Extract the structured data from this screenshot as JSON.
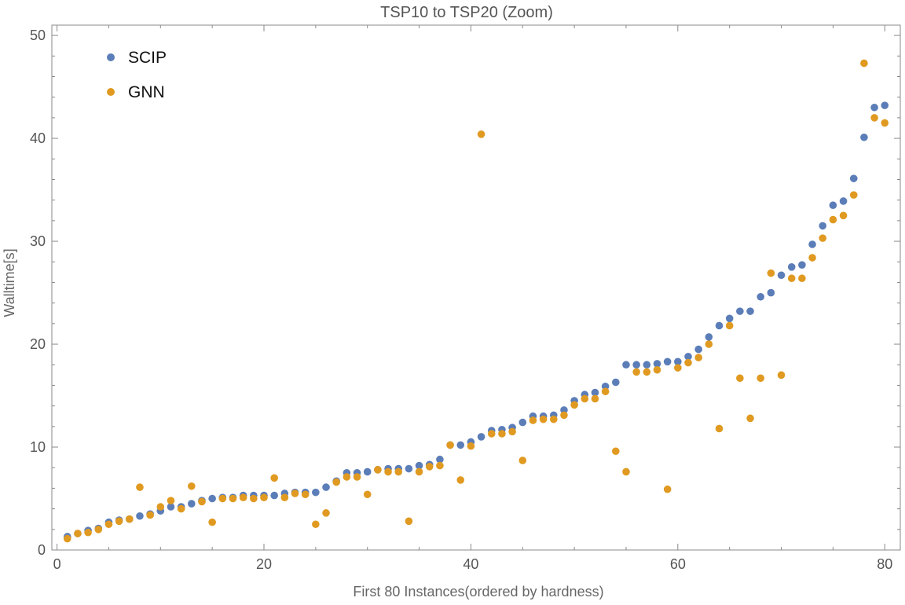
{
  "chart_data": {
    "type": "scatter",
    "title": "TSP10 to TSP20 (Zoom)",
    "xlabel": "First 80 Instances(ordered by hardness)",
    "ylabel": "Walltime[s]",
    "xlim": [
      -0.5,
      81.5
    ],
    "ylim": [
      0,
      51
    ],
    "xticks": [
      0,
      20,
      40,
      60,
      80
    ],
    "yticks": [
      0,
      10,
      20,
      30,
      40,
      50
    ],
    "grid": false,
    "legend_position": "top-left",
    "series": [
      {
        "name": "SCIP",
        "color": "#5b7db8",
        "x": [
          1,
          2,
          3,
          4,
          5,
          6,
          7,
          8,
          9,
          10,
          11,
          12,
          13,
          14,
          15,
          16,
          17,
          18,
          19,
          20,
          21,
          22,
          23,
          24,
          25,
          26,
          27,
          28,
          29,
          30,
          31,
          32,
          33,
          34,
          35,
          36,
          37,
          38,
          39,
          40,
          41,
          42,
          43,
          44,
          45,
          46,
          47,
          48,
          49,
          50,
          51,
          52,
          53,
          54,
          55,
          56,
          57,
          58,
          59,
          60,
          61,
          62,
          63,
          64,
          65,
          66,
          67,
          68,
          69,
          70,
          71,
          72,
          73,
          74,
          75,
          76,
          77,
          78,
          79,
          80
        ],
        "y": [
          1.3,
          1.6,
          1.9,
          2.1,
          2.7,
          2.9,
          3.0,
          3.3,
          3.5,
          3.8,
          4.2,
          4.2,
          4.5,
          4.8,
          5.0,
          5.1,
          5.1,
          5.3,
          5.3,
          5.3,
          5.3,
          5.5,
          5.6,
          5.6,
          5.6,
          6.1,
          6.7,
          7.5,
          7.5,
          7.6,
          7.8,
          7.9,
          7.9,
          7.9,
          8.2,
          8.3,
          8.8,
          10.2,
          10.2,
          10.5,
          11.0,
          11.6,
          11.7,
          11.9,
          12.4,
          13.0,
          13.0,
          13.1,
          13.6,
          14.5,
          15.1,
          15.3,
          15.9,
          16.3,
          18.0,
          18.0,
          18.0,
          18.1,
          18.3,
          18.3,
          18.8,
          19.5,
          20.7,
          21.8,
          22.5,
          23.2,
          23.2,
          24.6,
          25.0,
          26.7,
          27.5,
          27.7,
          29.7,
          31.5,
          33.5,
          33.9,
          36.1,
          40.1,
          43.0,
          43.2
        ]
      },
      {
        "name": "GNN",
        "color": "#e09a21",
        "x": [
          1,
          2,
          3,
          4,
          5,
          6,
          7,
          8,
          9,
          10,
          11,
          12,
          13,
          14,
          15,
          16,
          17,
          18,
          19,
          20,
          21,
          22,
          23,
          24,
          25,
          26,
          27,
          28,
          29,
          30,
          31,
          32,
          33,
          34,
          35,
          36,
          37,
          38,
          39,
          40,
          41,
          42,
          43,
          44,
          45,
          46,
          47,
          48,
          49,
          50,
          51,
          52,
          53,
          54,
          55,
          56,
          57,
          58,
          59,
          60,
          61,
          62,
          63,
          64,
          65,
          66,
          67,
          68,
          69,
          70,
          71,
          72,
          73,
          74,
          75,
          76,
          77,
          78,
          79,
          80
        ],
        "y": [
          1.1,
          1.6,
          1.7,
          2.0,
          2.5,
          2.8,
          3.0,
          6.1,
          3.4,
          4.2,
          4.8,
          4.0,
          6.2,
          4.7,
          2.7,
          5.0,
          5.0,
          5.1,
          5.0,
          5.1,
          7.0,
          5.1,
          5.5,
          5.4,
          2.5,
          3.6,
          6.6,
          7.1,
          7.1,
          5.4,
          7.8,
          7.6,
          7.6,
          2.8,
          7.6,
          8.1,
          8.2,
          10.2,
          6.8,
          10.1,
          40.4,
          11.3,
          11.3,
          11.5,
          8.7,
          12.6,
          12.7,
          12.7,
          13.1,
          14.1,
          14.7,
          14.7,
          15.4,
          9.6,
          7.6,
          17.3,
          17.3,
          17.5,
          5.9,
          17.7,
          18.2,
          18.7,
          20.0,
          11.8,
          21.8,
          16.7,
          12.8,
          16.7,
          26.9,
          17.0,
          26.4,
          26.4,
          28.4,
          30.3,
          32.1,
          32.5,
          34.5,
          47.3,
          42.0,
          41.5
        ]
      }
    ]
  }
}
